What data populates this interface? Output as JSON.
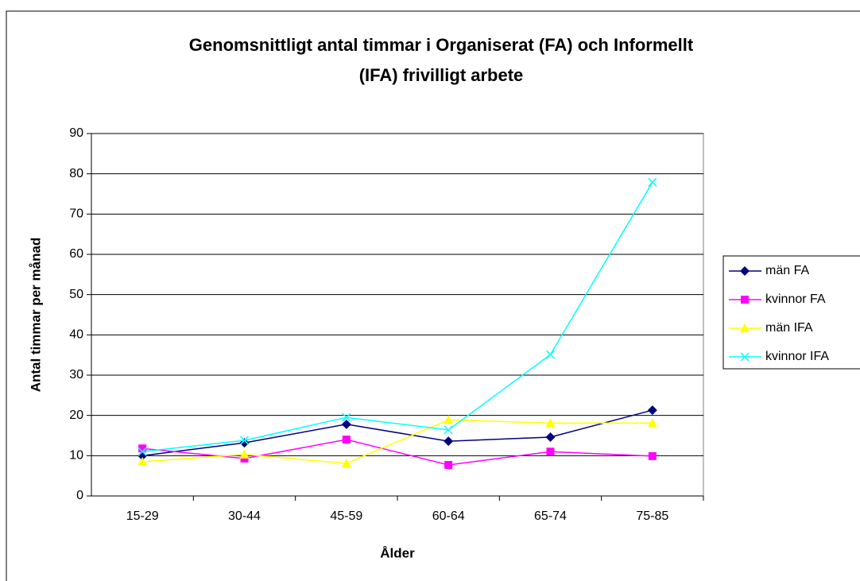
{
  "chart_data": {
    "type": "line",
    "title": [
      "Genomsnittligt antal timmar i Organiserat (FA) och Informellt",
      "(IFA) frivilligt arbete"
    ],
    "x_label": "Ålder",
    "y_label": "Antal timmar per månad",
    "categories": [
      "15-29",
      "30-44",
      "45-59",
      "60-64",
      "65-74",
      "75-85"
    ],
    "series": [
      {
        "name": "män FA",
        "color": "#000080",
        "marker": "diamond",
        "values": [
          10,
          13.2,
          17.8,
          13.6,
          14.6,
          21.3
        ]
      },
      {
        "name": "kvinnor FA",
        "color": "#ff00ff",
        "marker": "square",
        "values": [
          11.8,
          9.3,
          14,
          7.7,
          11,
          9.9
        ]
      },
      {
        "name": "män IFA",
        "color": "#ffff00",
        "marker": "triangle",
        "values": [
          8.5,
          10.3,
          8.1,
          18.9,
          18.1,
          18.1
        ]
      },
      {
        "name": "kvinnor IFA",
        "color": "#00ffff",
        "marker": "x",
        "values": [
          11,
          13.8,
          19.5,
          16.4,
          35.1,
          77.9
        ]
      }
    ],
    "ylim": [
      0,
      90
    ],
    "yticks": [
      0,
      10,
      20,
      30,
      40,
      50,
      60,
      70,
      80,
      90
    ],
    "grid": true,
    "legend": "right"
  }
}
